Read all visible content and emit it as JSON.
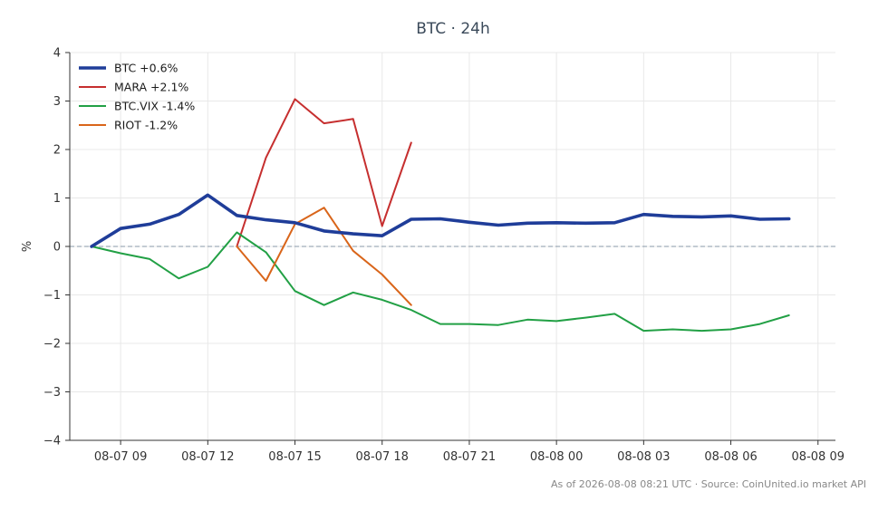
{
  "chart_data": {
    "type": "line",
    "title": "BTC · 24h",
    "ylabel": "%",
    "xlabel": "",
    "ylim": [
      -4,
      4
    ],
    "yticks": [
      -4,
      -3,
      -2,
      -1,
      0,
      1,
      2,
      3,
      4
    ],
    "ytick_labels": [
      "−4",
      "−3",
      "−2",
      "−1",
      "0",
      "1",
      "2",
      "3",
      "4"
    ],
    "xlim": [
      7.25,
      33.6
    ],
    "xticks": [
      9,
      12,
      15,
      18,
      21,
      24,
      27,
      30,
      33
    ],
    "xtick_labels": [
      "08-07 09",
      "08-07 12",
      "08-07 15",
      "08-07 18",
      "08-07 21",
      "08-08 00",
      "08-08 03",
      "08-08 06",
      "08-08 09"
    ],
    "grid": true,
    "zero_line": true,
    "legend": "top-left",
    "series": [
      {
        "name": "BTC +0.6%",
        "color": "#1f3d99",
        "x": [
          8,
          9,
          10,
          11,
          12,
          13,
          14,
          15,
          16,
          17,
          18,
          19,
          20,
          21,
          22,
          23,
          24,
          25,
          26,
          27,
          28,
          29,
          30,
          31,
          32
        ],
        "values": [
          0.0,
          0.37,
          0.46,
          0.66,
          1.06,
          0.64,
          0.55,
          0.49,
          0.32,
          0.26,
          0.22,
          0.56,
          0.57,
          0.5,
          0.44,
          0.48,
          0.49,
          0.48,
          0.49,
          0.66,
          0.62,
          0.61,
          0.63,
          0.56,
          0.57
        ]
      },
      {
        "name": "MARA +2.1%",
        "color": "#c62f2f",
        "x": [
          13,
          14,
          15,
          16,
          17,
          18,
          19
        ],
        "values": [
          0.0,
          1.83,
          3.04,
          2.54,
          2.63,
          0.42,
          2.14
        ]
      },
      {
        "name": "BTC.VIX -1.4%",
        "color": "#22a045",
        "x": [
          8,
          9,
          10,
          11,
          12,
          13,
          14,
          15,
          16,
          17,
          18,
          19,
          20,
          21,
          22,
          23,
          24,
          25,
          26,
          27,
          28,
          29,
          30,
          31,
          32
        ],
        "values": [
          0.0,
          -0.14,
          -0.26,
          -0.66,
          -0.42,
          0.29,
          -0.12,
          -0.92,
          -1.21,
          -0.95,
          -1.1,
          -1.31,
          -1.6,
          -1.6,
          -1.62,
          -1.51,
          -1.54,
          -1.47,
          -1.39,
          -1.74,
          -1.71,
          -1.74,
          -1.71,
          -1.6,
          -1.42
        ]
      },
      {
        "name": "RIOT -1.2%",
        "color": "#d9651a",
        "x": [
          13,
          14,
          15,
          16,
          17,
          18,
          19
        ],
        "values": [
          0.0,
          -0.71,
          0.46,
          0.8,
          -0.09,
          -0.58,
          -1.21
        ]
      }
    ],
    "footer": "As of 2026-08-08 08:21 UTC · Source: CoinUnited.io market API"
  }
}
